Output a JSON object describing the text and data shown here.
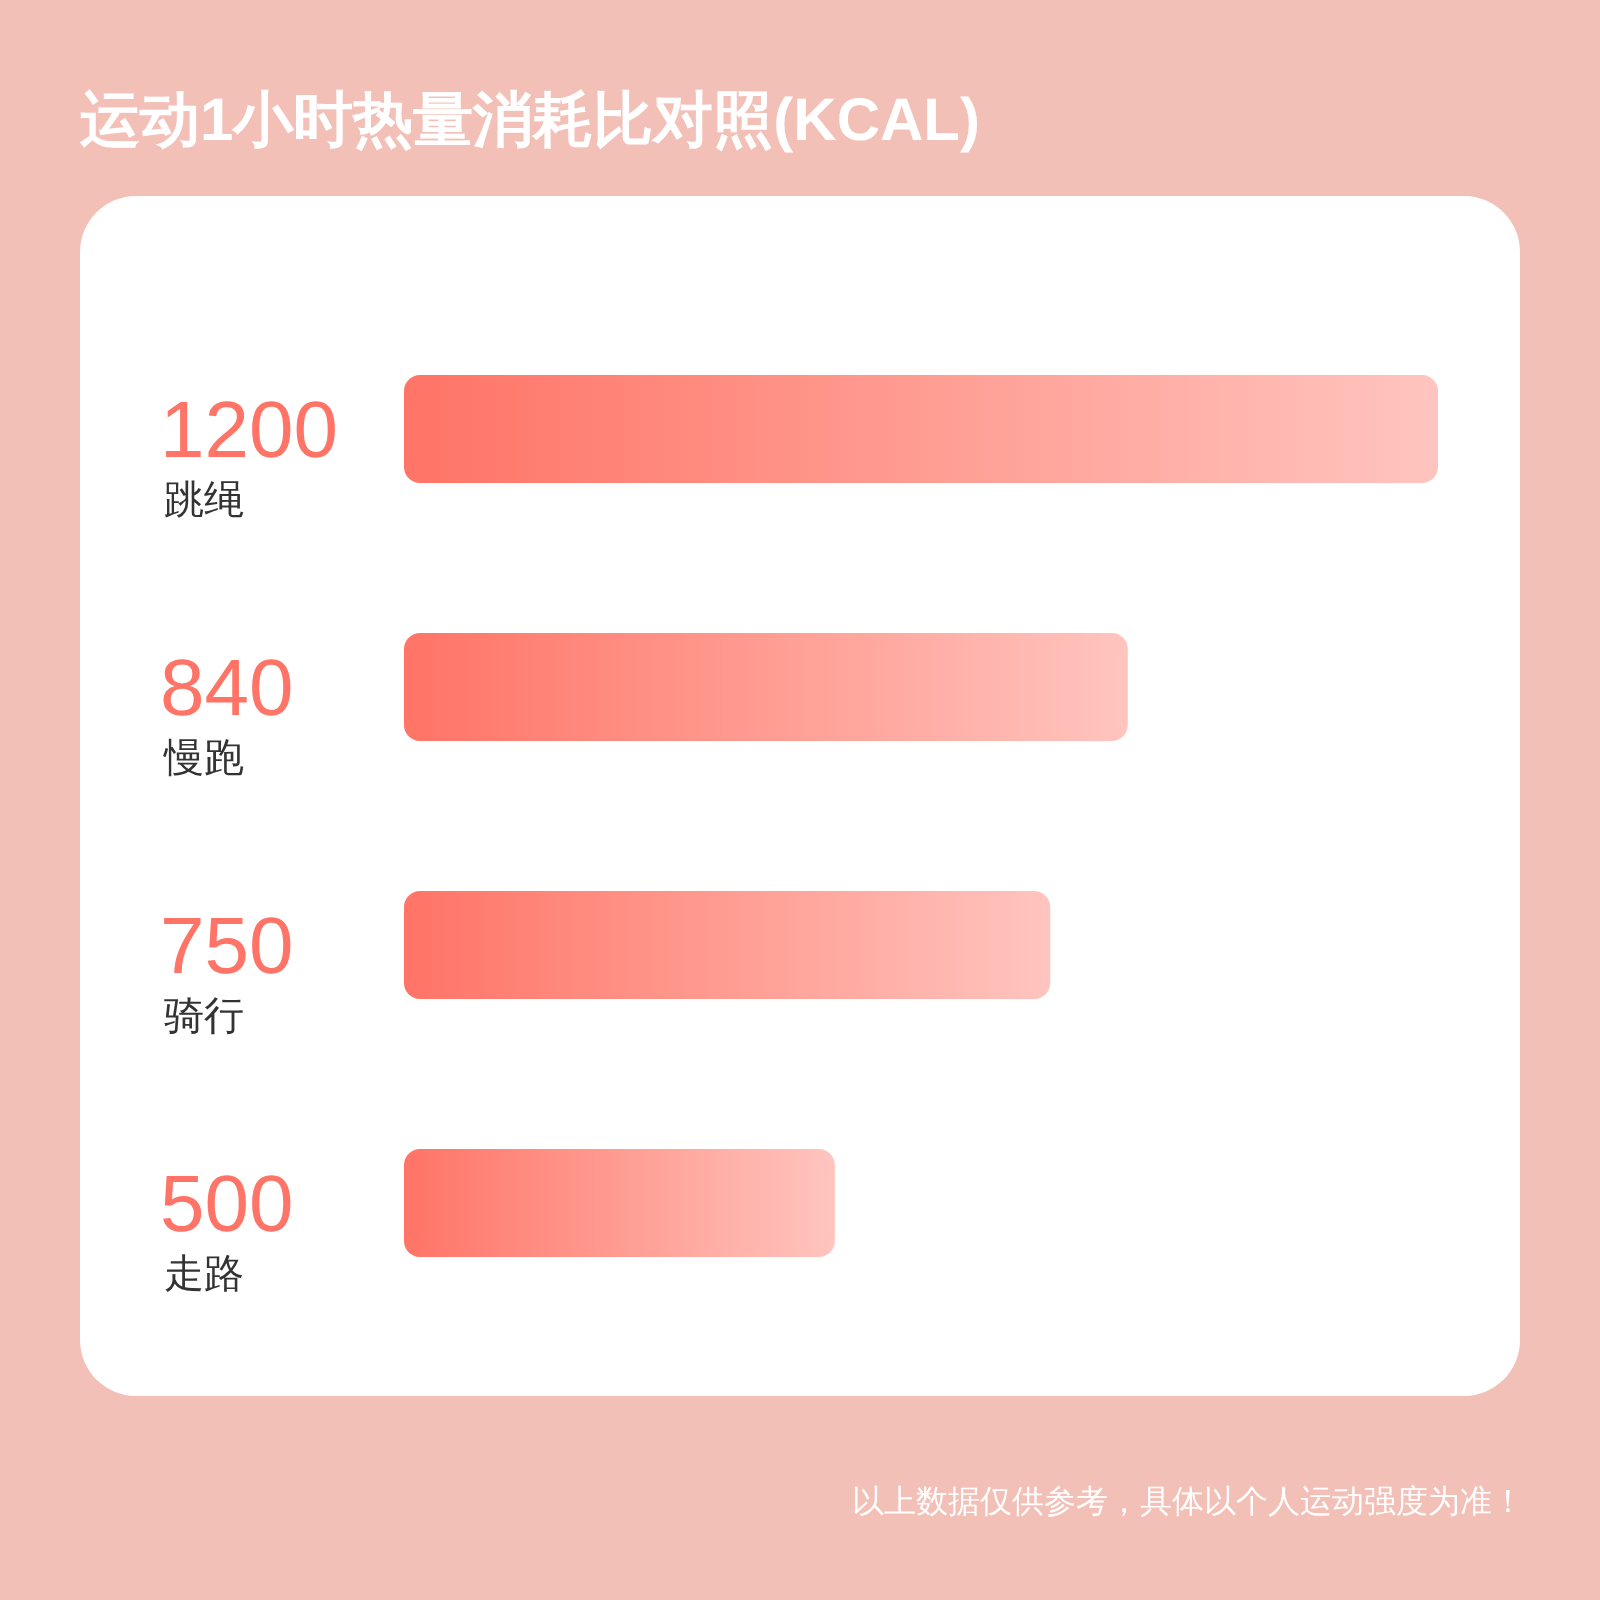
{
  "chart_data": {
    "type": "bar",
    "orientation": "horizontal",
    "title": "运动1小时热量消耗比对照(KCAL)",
    "categories": [
      "跳绳",
      "慢跑",
      "骑行",
      "走路"
    ],
    "values": [
      1200,
      840,
      750,
      500
    ],
    "color": "#ff7466",
    "data_labels": true,
    "annotations": [
      "以上数据仅供参考，具体以个人运动强度为准！"
    ]
  }
}
